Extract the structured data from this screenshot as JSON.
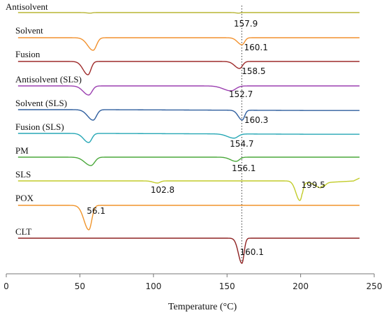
{
  "chart_data": {
    "type": "line",
    "title": "",
    "xlabel": "Temperature (°C)",
    "ylabel": "",
    "xlim": [
      0,
      250
    ],
    "xticks": [
      "0",
      "50",
      "100",
      "150",
      "200",
      "250"
    ],
    "xtick_values": [
      0,
      50,
      100,
      150,
      200,
      250
    ],
    "reference_line_x": 160,
    "grid": false,
    "legend": "none",
    "series": [
      {
        "name": "Antisolvent",
        "color": "#b8b534",
        "x_range": [
          8,
          240
        ],
        "peaks": [
          {
            "x": 157.9,
            "label": "157.9",
            "depth": 0.8,
            "width": 1.2
          },
          {
            "x": 57,
            "label": "",
            "depth": 0.8,
            "width": 1.5
          }
        ]
      },
      {
        "name": "Solvent",
        "color": "#f2912d",
        "x_range": [
          8,
          240
        ],
        "peaks": [
          {
            "x": 59,
            "label": "",
            "depth": 18,
            "width": 2.5
          },
          {
            "x": 160.1,
            "label": "160.1",
            "depth": 10,
            "width": 2.0
          }
        ]
      },
      {
        "name": "Fusion",
        "color": "#9e2a2a",
        "x_range": [
          8,
          240
        ],
        "peaks": [
          {
            "x": 55.5,
            "label": "",
            "depth": 19,
            "width": 2.2
          },
          {
            "x": 158.5,
            "label": "158.5",
            "depth": 10,
            "width": 2.2
          }
        ]
      },
      {
        "name": "Antisolvent (SLS)",
        "color": "#9b3fb0",
        "x_range": [
          8,
          240
        ],
        "peaks": [
          {
            "x": 56,
            "label": "",
            "depth": 13,
            "width": 2.5
          },
          {
            "x": 152.7,
            "label": "152.7",
            "depth": 7,
            "width": 3.5
          }
        ]
      },
      {
        "name": "Solvent (SLS)",
        "color": "#2e5e9e",
        "x_range": [
          8,
          240
        ],
        "peaks": [
          {
            "x": 59,
            "label": "",
            "depth": 15,
            "width": 2.5
          },
          {
            "x": 160.3,
            "label": "160.3",
            "depth": 14,
            "width": 1.8
          }
        ]
      },
      {
        "name": "Fusion (SLS)",
        "color": "#26a7b5",
        "x_range": [
          8,
          240
        ],
        "peaks": [
          {
            "x": 56,
            "label": "",
            "depth": 13,
            "width": 2.3
          },
          {
            "x": 154.7,
            "label": "154.7",
            "depth": 6,
            "width": 3.0
          }
        ]
      },
      {
        "name": "PM",
        "color": "#4aa83a",
        "x_range": [
          8,
          240
        ],
        "peaks": [
          {
            "x": 57.5,
            "label": "",
            "depth": 12,
            "width": 2.8
          },
          {
            "x": 156.1,
            "label": "156.1",
            "depth": 6,
            "width": 2.5
          }
        ]
      },
      {
        "name": "SLS",
        "color": "#c2cc2a",
        "x_range": [
          8,
          240
        ],
        "peaks": [
          {
            "x": 102.8,
            "label": "102.8",
            "depth": 3,
            "width": 2.0
          },
          {
            "x": 199.5,
            "label": "199.5",
            "depth": 28,
            "width": 1.8
          },
          {
            "x": 214,
            "label": "",
            "depth": 8,
            "width": 2.5
          }
        ]
      },
      {
        "name": "POX",
        "color": "#f0942a",
        "x_range": [
          8,
          240
        ],
        "peaks": [
          {
            "x": 56.1,
            "label": "56.1",
            "depth": 35,
            "width": 2.2
          }
        ]
      },
      {
        "name": "CLT",
        "color": "#8e2020",
        "x_range": [
          8,
          240
        ],
        "peaks": [
          {
            "x": 160.1,
            "label": "160.1",
            "depth": 36,
            "width": 1.6
          }
        ]
      }
    ]
  }
}
